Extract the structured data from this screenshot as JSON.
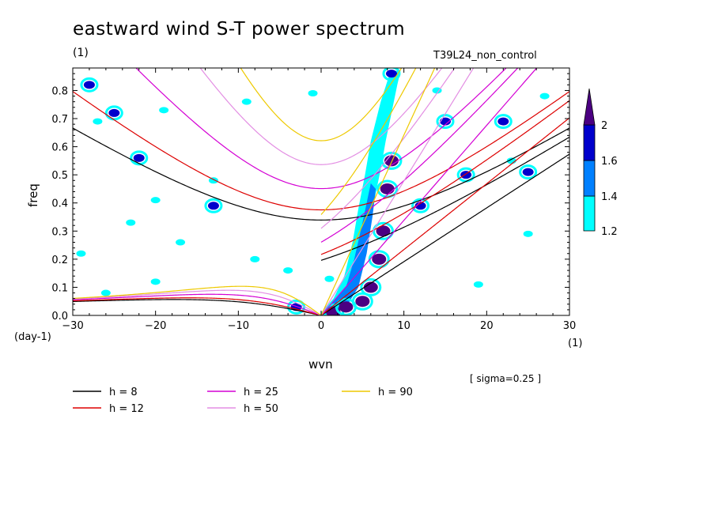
{
  "title": "eastward wind S-T power spectrum",
  "unit_top_left": "(1)",
  "run_name": "T39L24_non_control",
  "sigma_note": "[ sigma=0.25 ]",
  "colors": {
    "shade_1": "#00ffff",
    "shade_2": "#0080ff",
    "shade_3": "#0000cc",
    "shade_4": "#4b0082",
    "h8": "#000000",
    "h12": "#dd0000",
    "h25": "#d400d4",
    "h50": "#e38ee3",
    "h90": "#eec900"
  },
  "chart_data": {
    "type": "heatmap",
    "title": "eastward wind S-T power spectrum",
    "xlabel": "wvn",
    "ylabel": "freq",
    "x_unit": "(1)",
    "y_unit": "(day-1)",
    "xlim": [
      -30,
      30
    ],
    "ylim": [
      0,
      0.88
    ],
    "x_ticks": [
      -30,
      -20,
      -10,
      0,
      10,
      20,
      30
    ],
    "y_ticks": [
      0.0,
      0.1,
      0.2,
      0.3,
      0.4,
      0.5,
      0.6,
      0.7,
      0.8
    ],
    "x_tick_labels": [
      "−30",
      "−20",
      "−10",
      "0",
      "10",
      "20",
      "30"
    ],
    "y_tick_labels": [
      "0.0",
      "0.1",
      "0.2",
      "0.3",
      "0.4",
      "0.5",
      "0.6",
      "0.7",
      "0.8"
    ],
    "colorbar": {
      "levels": [
        1.2,
        1.4,
        1.6,
        2
      ],
      "labels": [
        "1.2",
        "1.4",
        "1.6",
        "2"
      ]
    },
    "dispersion_curves": {
      "legend": [
        {
          "label": "h =  8",
          "color": "#000000"
        },
        {
          "label": "h = 12",
          "color": "#dd0000"
        },
        {
          "label": "h = 25",
          "color": "#d400d4"
        },
        {
          "label": "h = 50",
          "color": "#e38ee3"
        },
        {
          "label": "h = 90",
          "color": "#eec900"
        }
      ],
      "equivalent_depths": [
        8,
        12,
        25,
        50,
        90
      ]
    },
    "shaded_regions": [
      {
        "level": 2,
        "points": [
          [
            1.5,
            0.01
          ],
          [
            3,
            0.03
          ],
          [
            5,
            0.05
          ],
          [
            6,
            0.1
          ],
          [
            7,
            0.2
          ],
          [
            7.5,
            0.3
          ],
          [
            8,
            0.45
          ],
          [
            8.5,
            0.55
          ]
        ]
      },
      {
        "level": 1.6,
        "points": [
          [
            -28,
            0.82
          ],
          [
            -25,
            0.72
          ],
          [
            -22,
            0.56
          ],
          [
            -13,
            0.39
          ],
          [
            -3,
            0.03
          ],
          [
            8.5,
            0.86
          ],
          [
            12,
            0.39
          ],
          [
            15,
            0.69
          ],
          [
            17.5,
            0.5
          ],
          [
            22,
            0.69
          ],
          [
            25,
            0.51
          ]
        ]
      },
      {
        "level": 1.2,
        "points": [
          [
            -26,
            0.08
          ],
          [
            -20,
            0.12
          ],
          [
            -17,
            0.26
          ],
          [
            -8,
            0.2
          ],
          [
            -4,
            0.16
          ],
          [
            1,
            0.13
          ],
          [
            -27,
            0.69
          ],
          [
            -19,
            0.73
          ],
          [
            -9,
            0.76
          ],
          [
            -1,
            0.79
          ],
          [
            14,
            0.8
          ],
          [
            23,
            0.55
          ],
          [
            27,
            0.78
          ],
          [
            19,
            0.11
          ],
          [
            25,
            0.29
          ],
          [
            -29,
            0.22
          ],
          [
            -23,
            0.33
          ],
          [
            -13,
            0.48
          ],
          [
            -20,
            0.41
          ]
        ]
      }
    ]
  }
}
